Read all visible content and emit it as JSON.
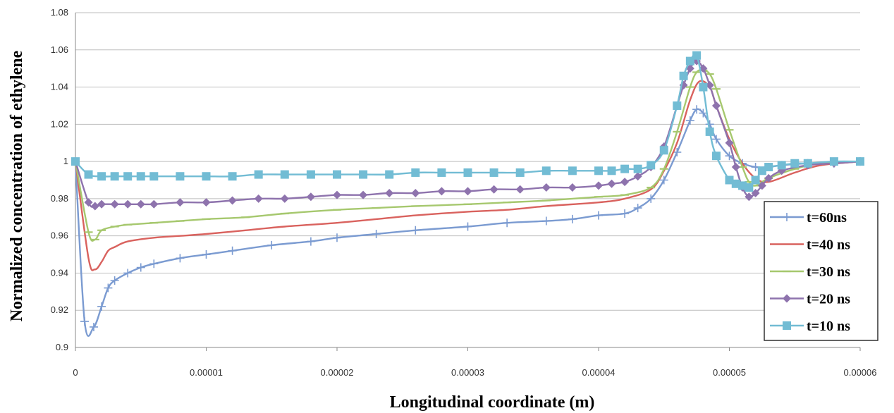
{
  "chart_data": {
    "type": "line",
    "title": "",
    "xlabel": "Longitudinal coordinate (m)",
    "ylabel": "Normalized concentration of ethylene",
    "xlim": [
      0,
      6e-05
    ],
    "ylim": [
      0.9,
      1.08
    ],
    "x_ticks": [
      "0",
      "0.00001",
      "0.00002",
      "0.00003",
      "0.00004",
      "0.00005",
      "0.00006"
    ],
    "y_ticks": [
      "0.9",
      "0.92",
      "0.94",
      "0.96",
      "0.98",
      "1",
      "1.02",
      "1.04",
      "1.06",
      "1.08"
    ],
    "grid": "horizontal",
    "legend_position": "bottom-right",
    "series": [
      {
        "name": "t=60ns",
        "color": "#7b9bd1",
        "marker": "plus",
        "x": [
          0,
          7e-07,
          1.4e-06,
          2e-06,
          2.5e-06,
          3e-06,
          4e-06,
          5e-06,
          6e-06,
          8e-06,
          1e-05,
          1.2e-05,
          1.5e-05,
          1.8e-05,
          2e-05,
          2.3e-05,
          2.6e-05,
          3e-05,
          3.3e-05,
          3.6e-05,
          3.8e-05,
          4e-05,
          4.2e-05,
          4.3e-05,
          4.4e-05,
          4.5e-05,
          4.6e-05,
          4.7e-05,
          4.75e-05,
          4.8e-05,
          4.85e-05,
          4.9e-05,
          5e-05,
          5.1e-05,
          5.2e-05,
          5.3e-05,
          5.4e-05,
          5.6e-05,
          5.8e-05,
          6e-05
        ],
        "y": [
          1.0,
          0.914,
          0.911,
          0.922,
          0.932,
          0.936,
          0.94,
          0.943,
          0.945,
          0.948,
          0.95,
          0.952,
          0.955,
          0.957,
          0.959,
          0.961,
          0.963,
          0.965,
          0.967,
          0.968,
          0.969,
          0.971,
          0.972,
          0.975,
          0.98,
          0.99,
          1.005,
          1.022,
          1.028,
          1.026,
          1.02,
          1.012,
          1.003,
          0.999,
          0.997,
          0.997,
          0.998,
          0.999,
          0.999,
          1.0
        ]
      },
      {
        "name": "t=40 ns",
        "color": "#d9625e",
        "marker": "none",
        "x": [
          0,
          1e-06,
          1.5e-06,
          2e-06,
          2.5e-06,
          3e-06,
          4e-06,
          6e-06,
          8e-06,
          1e-05,
          1.3e-05,
          1.6e-05,
          2e-05,
          2.3e-05,
          2.6e-05,
          3e-05,
          3.3e-05,
          3.6e-05,
          4e-05,
          4.2e-05,
          4.4e-05,
          4.5e-05,
          4.6e-05,
          4.7e-05,
          4.77e-05,
          4.85e-05,
          4.9e-05,
          5e-05,
          5.1e-05,
          5.2e-05,
          5.3e-05,
          5.5e-05,
          5.7e-05,
          6e-05
        ],
        "y": [
          1.0,
          0.948,
          0.942,
          0.946,
          0.952,
          0.954,
          0.957,
          0.959,
          0.96,
          0.961,
          0.963,
          0.965,
          0.967,
          0.969,
          0.971,
          0.973,
          0.974,
          0.976,
          0.978,
          0.98,
          0.985,
          0.995,
          1.01,
          1.033,
          1.043,
          1.04,
          1.03,
          1.012,
          0.999,
          0.991,
          0.989,
          0.994,
          0.998,
          1.0
        ]
      },
      {
        "name": "t=30 ns",
        "color": "#a6c86e",
        "marker": "dash",
        "x": [
          0,
          1e-06,
          1.5e-06,
          2e-06,
          3e-06,
          4e-06,
          6e-06,
          8e-06,
          1e-05,
          1.3e-05,
          1.6e-05,
          2e-05,
          2.3e-05,
          2.6e-05,
          3e-05,
          3.3e-05,
          3.6e-05,
          4e-05,
          4.2e-05,
          4.4e-05,
          4.5e-05,
          4.6e-05,
          4.7e-05,
          4.75e-05,
          4.8e-05,
          4.85e-05,
          4.9e-05,
          5e-05,
          5.1e-05,
          5.15e-05,
          5.2e-05,
          5.3e-05,
          5.5e-05,
          5.7e-05,
          6e-05
        ],
        "y": [
          1.0,
          0.962,
          0.958,
          0.963,
          0.965,
          0.966,
          0.967,
          0.968,
          0.969,
          0.97,
          0.972,
          0.974,
          0.975,
          0.976,
          0.977,
          0.978,
          0.979,
          0.981,
          0.982,
          0.986,
          0.996,
          1.016,
          1.04,
          1.048,
          1.049,
          1.047,
          1.039,
          1.017,
          0.997,
          0.989,
          0.987,
          0.991,
          0.996,
          0.999,
          1.0
        ]
      },
      {
        "name": "t=20 ns",
        "color": "#8e73ad",
        "marker": "diamond",
        "x": [
          0,
          1e-06,
          1.5e-06,
          2e-06,
          3e-06,
          4e-06,
          5e-06,
          6e-06,
          8e-06,
          1e-05,
          1.2e-05,
          1.4e-05,
          1.6e-05,
          1.8e-05,
          2e-05,
          2.2e-05,
          2.4e-05,
          2.6e-05,
          2.8e-05,
          3e-05,
          3.2e-05,
          3.4e-05,
          3.6e-05,
          3.8e-05,
          4e-05,
          4.1e-05,
          4.2e-05,
          4.3e-05,
          4.4e-05,
          4.5e-05,
          4.6e-05,
          4.65e-05,
          4.7e-05,
          4.75e-05,
          4.8e-05,
          4.85e-05,
          4.9e-05,
          5e-05,
          5.05e-05,
          5.1e-05,
          5.15e-05,
          5.2e-05,
          5.25e-05,
          5.3e-05,
          5.4e-05,
          5.6e-05,
          5.8e-05,
          6e-05
        ],
        "y": [
          1.0,
          0.978,
          0.976,
          0.977,
          0.977,
          0.977,
          0.977,
          0.977,
          0.978,
          0.978,
          0.979,
          0.98,
          0.98,
          0.981,
          0.982,
          0.982,
          0.983,
          0.983,
          0.984,
          0.984,
          0.985,
          0.985,
          0.986,
          0.986,
          0.987,
          0.988,
          0.989,
          0.992,
          0.997,
          1.008,
          1.03,
          1.041,
          1.05,
          1.054,
          1.05,
          1.041,
          1.03,
          1.01,
          0.997,
          0.986,
          0.981,
          0.983,
          0.987,
          0.991,
          0.995,
          0.998,
          0.999,
          1.0
        ]
      },
      {
        "name": "t=10 ns",
        "color": "#72bcd4",
        "marker": "square",
        "x": [
          0,
          1e-06,
          2e-06,
          3e-06,
          4e-06,
          5e-06,
          6e-06,
          8e-06,
          1e-05,
          1.2e-05,
          1.4e-05,
          1.6e-05,
          1.8e-05,
          2e-05,
          2.2e-05,
          2.4e-05,
          2.6e-05,
          2.8e-05,
          3e-05,
          3.2e-05,
          3.4e-05,
          3.6e-05,
          3.8e-05,
          4e-05,
          4.1e-05,
          4.2e-05,
          4.3e-05,
          4.4e-05,
          4.5e-05,
          4.6e-05,
          4.65e-05,
          4.7e-05,
          4.75e-05,
          4.8e-05,
          4.85e-05,
          4.9e-05,
          5e-05,
          5.05e-05,
          5.1e-05,
          5.15e-05,
          5.2e-05,
          5.25e-05,
          5.3e-05,
          5.4e-05,
          5.5e-05,
          5.6e-05,
          5.8e-05,
          6e-05
        ],
        "y": [
          1.0,
          0.993,
          0.992,
          0.992,
          0.992,
          0.992,
          0.992,
          0.992,
          0.992,
          0.992,
          0.993,
          0.993,
          0.993,
          0.993,
          0.993,
          0.993,
          0.994,
          0.994,
          0.994,
          0.994,
          0.994,
          0.995,
          0.995,
          0.995,
          0.995,
          0.996,
          0.996,
          0.998,
          1.006,
          1.03,
          1.046,
          1.054,
          1.057,
          1.04,
          1.016,
          1.003,
          0.99,
          0.988,
          0.987,
          0.986,
          0.99,
          0.995,
          0.997,
          0.998,
          0.999,
          0.999,
          1.0,
          1.0
        ]
      }
    ]
  }
}
